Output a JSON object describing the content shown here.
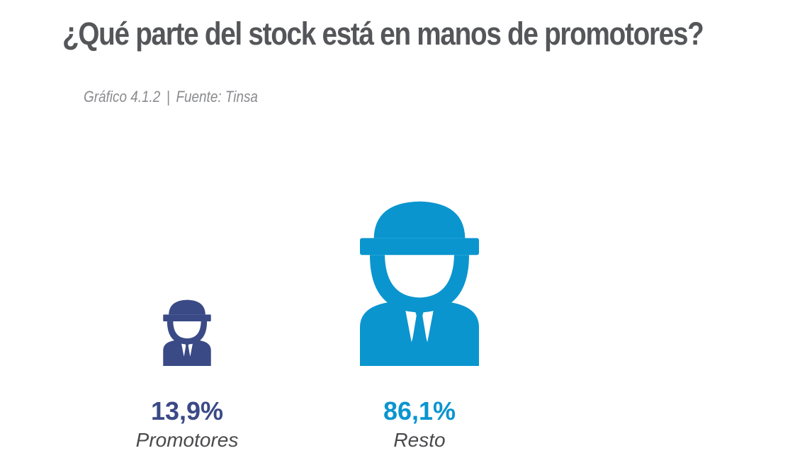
{
  "header": {
    "title": "¿Qué parte del stock está en manos de promotores?",
    "figure_label": "Gráfico 4.1.2",
    "separator": "|",
    "source": "Fuente: Tinsa"
  },
  "colors": {
    "promotores": "#3a4a86",
    "resto": "#0a95cf"
  },
  "chart_data": {
    "type": "pictogram",
    "title": "¿Qué parte del stock está en manos de promotores?",
    "icon": "construction-worker-icon",
    "categories": [
      "Promotores",
      "Resto"
    ],
    "values": [
      13.9,
      86.1
    ],
    "value_labels": [
      "13,9%",
      "86,1%"
    ],
    "unit": "%"
  }
}
